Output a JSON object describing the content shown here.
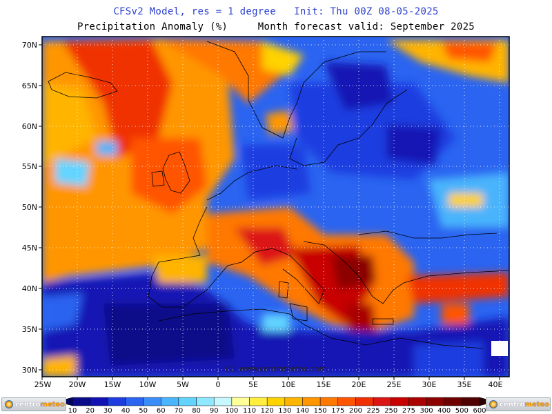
{
  "header": {
    "line1": "CFSv2 Model, res = 1 degree   Init: Thu 00Z 08-05-2025",
    "line2": "Precipitation Anomaly (%)     Month forecast valid: September 2025"
  },
  "map": {
    "lat_labels": [
      "70N",
      "65N",
      "60N",
      "55N",
      "50N",
      "45N",
      "40N",
      "35N",
      "30N"
    ],
    "lon_labels": [
      "25W",
      "20W",
      "15W",
      "10W",
      "5W",
      "0",
      "5E",
      "10E",
      "15E",
      "20E",
      "25E",
      "30E",
      "35E",
      "40E"
    ],
    "copyright": "(C) www.centrometeo.com",
    "lon_range": [
      -25,
      41
    ],
    "lat_range": [
      29,
      71
    ]
  },
  "colorbar": {
    "labels": [
      "10",
      "20",
      "30",
      "40",
      "50",
      "60",
      "70",
      "80",
      "90",
      "100",
      "110",
      "120",
      "130",
      "140",
      "150",
      "175",
      "200",
      "225",
      "250",
      "275",
      "300",
      "400",
      "500",
      "600"
    ],
    "colors": [
      "#0a0a8a",
      "#1212b4",
      "#1e3ce0",
      "#2a64f0",
      "#3a8cf8",
      "#4ab4fc",
      "#62d4ff",
      "#8ee8ff",
      "#c8f8ff",
      "#ffff9a",
      "#ffee40",
      "#ffd200",
      "#ffb400",
      "#ff9600",
      "#ff7800",
      "#ff5400",
      "#f03000",
      "#dc1414",
      "#c80000",
      "#aa0000",
      "#8c0000",
      "#6e0000",
      "#500000"
    ]
  },
  "logos": {
    "left_text": "centro",
    "left_accent": "meteo",
    "right_text": "centro",
    "right_accent": "meteo"
  }
}
